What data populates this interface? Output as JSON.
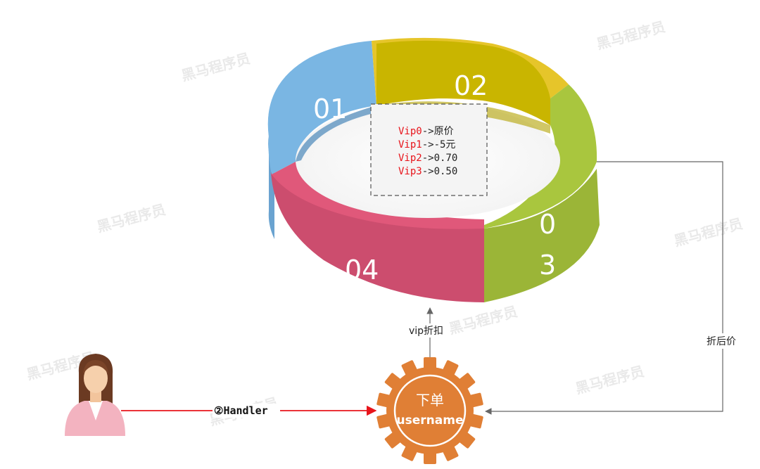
{
  "ring": {
    "segments": [
      {
        "label": "01",
        "color": "#7ab6e3"
      },
      {
        "label": "02",
        "color": "#e6c52a"
      },
      {
        "label": "03",
        "label_line1": "0",
        "label_line2": "3",
        "color": "#a9c63e"
      },
      {
        "label": "04",
        "color": "#e0587a"
      }
    ]
  },
  "discount_box": {
    "lines": [
      {
        "key": "Vip0",
        "value": "->原价"
      },
      {
        "key": "Vip1",
        "value": "->-5元"
      },
      {
        "key": "Vip2",
        "value": "->0.70"
      },
      {
        "key": "Vip3",
        "value": "->0.50"
      }
    ]
  },
  "edges": {
    "vip_discount": "vip折扣",
    "discounted_price": "折后价",
    "handler": "②Handler"
  },
  "gear": {
    "line1": "下单",
    "line2": "username",
    "color": "#e07f35"
  },
  "watermark": "黑马程序员"
}
